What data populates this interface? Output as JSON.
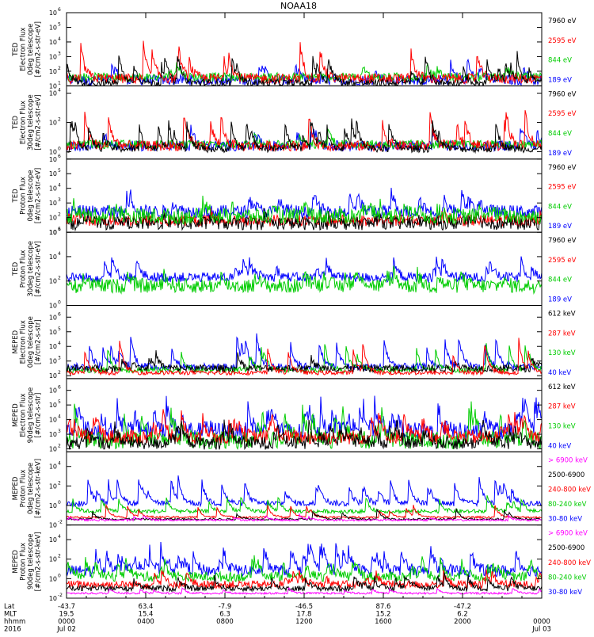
{
  "title": "NOAA18",
  "chart_data": [
    {
      "type": "line",
      "ylabel": [
        "TED",
        "Electron Flux",
        "0deg telescope",
        "[#/cm2-s-str-eV]"
      ],
      "ytick_exponents": [
        1,
        2,
        3,
        4,
        5,
        6
      ],
      "ylim_log10": [
        1,
        6
      ],
      "legend": [
        {
          "label": "7960 eV",
          "color": "#000000"
        },
        {
          "label": "2595 eV",
          "color": "#ff0000"
        },
        {
          "label": "844 eV",
          "color": "#00cc00"
        },
        {
          "label": "189 eV",
          "color": "#0000ff"
        }
      ],
      "series": [
        {
          "color": "#0000ff",
          "base": 1.4,
          "noise": 0.35,
          "peak_rate": 0.01,
          "peak_height": 1.6
        },
        {
          "color": "#00cc00",
          "base": 1.6,
          "noise": 0.3,
          "peak_rate": 0.008,
          "peak_height": 1.4
        },
        {
          "color": "#ff0000",
          "base": 1.5,
          "noise": 0.35,
          "peak_rate": 0.028,
          "peak_height": 2.6
        },
        {
          "color": "#000000",
          "base": 1.2,
          "noise": 0.25,
          "peak_rate": 0.03,
          "peak_height": 2.2
        }
      ]
    },
    {
      "type": "line",
      "ylabel": [
        "TED",
        "Electron Flux",
        "30deg telescope",
        "[#/cm2-s-str-eV]"
      ],
      "ytick_exponents": [
        0,
        2,
        4
      ],
      "ylim_log10": [
        -0.5,
        4.5
      ],
      "legend": [
        {
          "label": "7960 eV",
          "color": "#000000"
        },
        {
          "label": "2595 eV",
          "color": "#ff0000"
        },
        {
          "label": "844 eV",
          "color": "#00cc00"
        },
        {
          "label": "189 eV",
          "color": "#0000ff"
        }
      ],
      "series": [
        {
          "color": "#0000ff",
          "base": 0.4,
          "noise": 0.35,
          "peak_rate": 0.01,
          "peak_height": 1.6
        },
        {
          "color": "#00cc00",
          "base": 0.5,
          "noise": 0.3,
          "peak_rate": 0.008,
          "peak_height": 1.4
        },
        {
          "color": "#ff0000",
          "base": 0.4,
          "noise": 0.35,
          "peak_rate": 0.028,
          "peak_height": 2.8
        },
        {
          "color": "#000000",
          "base": 0.2,
          "noise": 0.25,
          "peak_rate": 0.03,
          "peak_height": 2.2
        }
      ]
    },
    {
      "type": "line",
      "ylabel": [
        "TED",
        "Proton Flux",
        "0deg telescope",
        "[#/cm2-s-str-eV]"
      ],
      "ytick_exponents": [
        1,
        2,
        3,
        4,
        5,
        6
      ],
      "ylim_log10": [
        1,
        6
      ],
      "legend": [
        {
          "label": "7960 eV",
          "color": "#000000"
        },
        {
          "label": "2595 eV",
          "color": "#ff0000"
        },
        {
          "label": "844 eV",
          "color": "#00cc00"
        },
        {
          "label": "189 eV",
          "color": "#0000ff"
        }
      ],
      "series": [
        {
          "color": "#0000ff",
          "base": 2.4,
          "noise": 0.45,
          "peak_rate": 0.04,
          "peak_height": 1.6
        },
        {
          "color": "#ff0000",
          "base": 1.8,
          "noise": 0.4,
          "peak_rate": 0.01,
          "peak_height": 0.8
        },
        {
          "color": "#000000",
          "base": 1.6,
          "noise": 0.45,
          "peak_rate": 0.02,
          "peak_height": 0.8
        },
        {
          "color": "#00cc00",
          "base": 2.1,
          "noise": 0.55,
          "peak_rate": 0.03,
          "peak_height": 1.0
        }
      ]
    },
    {
      "type": "line",
      "ylabel": [
        "TED",
        "Proton Flux",
        "30deg telescope",
        "[#/cm2-s-str-eV]"
      ],
      "ytick_exponents": [
        0,
        2,
        4,
        6
      ],
      "ylim_log10": [
        0,
        6
      ],
      "legend": [
        {
          "label": "7960 eV",
          "color": "#000000"
        },
        {
          "label": "2595 eV",
          "color": "#ff0000"
        },
        {
          "label": "844 eV",
          "color": "#00cc00"
        },
        {
          "label": "189 eV",
          "color": "#0000ff"
        }
      ],
      "series": [
        {
          "color": "#0000ff",
          "base": 2.3,
          "noise": 0.4,
          "peak_rate": 0.04,
          "peak_height": 1.8
        },
        {
          "color": "#00cc00",
          "base": 1.6,
          "noise": 0.6,
          "peak_rate": 0.03,
          "peak_height": 1.4
        }
      ]
    },
    {
      "type": "line",
      "ylabel": [
        "MEPED",
        "Electron Flux",
        "0deg telescope",
        "[#/cm2-s-str]"
      ],
      "ytick_exponents": [
        2,
        3,
        4,
        5,
        6
      ],
      "ylim_log10": [
        1.8,
        6.8
      ],
      "legend": [
        {
          "label": "612 keV",
          "color": "#000000"
        },
        {
          "label": "287 keV",
          "color": "#ff0000"
        },
        {
          "label": "130 keV",
          "color": "#00cc00"
        },
        {
          "label": "40 keV",
          "color": "#0000ff"
        }
      ],
      "series": [
        {
          "color": "#0000ff",
          "base": 2.6,
          "noise": 0.25,
          "peak_rate": 0.03,
          "peak_height": 2.6
        },
        {
          "color": "#00cc00",
          "base": 2.4,
          "noise": 0.2,
          "peak_rate": 0.02,
          "peak_height": 2.0
        },
        {
          "color": "#000000",
          "base": 2.5,
          "noise": 0.25,
          "peak_rate": 0.02,
          "peak_height": 1.2
        },
        {
          "color": "#ff0000",
          "base": 2.2,
          "noise": 0.15,
          "peak_rate": 0.012,
          "peak_height": 2.6
        }
      ]
    },
    {
      "type": "line",
      "ylabel": [
        "MEPED",
        "Electron Flux",
        "90deg telescope",
        "[#/cm2-s-str]"
      ],
      "ytick_exponents": [
        2,
        3,
        4,
        5,
        6
      ],
      "ylim_log10": [
        1.8,
        6.8
      ],
      "legend": [
        {
          "label": "612 keV",
          "color": "#000000"
        },
        {
          "label": "287 keV",
          "color": "#ff0000"
        },
        {
          "label": "130 keV",
          "color": "#00cc00"
        },
        {
          "label": "40 keV",
          "color": "#0000ff"
        }
      ],
      "series": [
        {
          "color": "#0000ff",
          "base": 3.2,
          "noise": 0.6,
          "peak_rate": 0.05,
          "peak_height": 2.2
        },
        {
          "color": "#00cc00",
          "base": 2.6,
          "noise": 0.6,
          "peak_rate": 0.05,
          "peak_height": 2.4
        },
        {
          "color": "#ff0000",
          "base": 2.8,
          "noise": 0.5,
          "peak_rate": 0.05,
          "peak_height": 1.8
        },
        {
          "color": "#000000",
          "base": 2.4,
          "noise": 0.45,
          "peak_rate": 0.05,
          "peak_height": 1.6
        }
      ]
    },
    {
      "type": "line",
      "ylabel": [
        "MEPED",
        "Proton Flux",
        "0deg telescope",
        "[#/cm2-s-str-keV]"
      ],
      "ytick_exponents": [
        -2,
        0,
        2,
        4
      ],
      "ylim_log10": [
        -2,
        5.5
      ],
      "legend": [
        {
          "label": "> 6900 keV",
          "color": "#ff00ff"
        },
        {
          "label": "2500-6900",
          "color": "#000000"
        },
        {
          "label": "240-800 keV",
          "color": "#ff0000"
        },
        {
          "label": "80-240 keV",
          "color": "#00cc00"
        },
        {
          "label": "30-80 keV",
          "color": "#0000ff"
        }
      ],
      "series": [
        {
          "color": "#0000ff",
          "base": 0.2,
          "noise": 0.3,
          "peak_rate": 0.04,
          "peak_height": 3.0
        },
        {
          "color": "#00cc00",
          "base": -0.6,
          "noise": 0.2,
          "peak_rate": 0.03,
          "peak_height": 2.0
        },
        {
          "color": "#ff0000",
          "base": -1.2,
          "noise": 0.1,
          "peak_rate": 0.02,
          "peak_height": 1.4
        },
        {
          "color": "#000000",
          "base": -1.4,
          "noise": 0.1,
          "peak_rate": 0.02,
          "peak_height": 1.2
        },
        {
          "color": "#ff00ff",
          "base": -1.5,
          "noise": 0.1,
          "peak_rate": 0.015,
          "peak_height": 0.6
        }
      ]
    },
    {
      "type": "line",
      "ylabel": [
        "MEPED",
        "Proton Flux",
        "90deg telescope",
        "[#/cm2-s-str-keV]"
      ],
      "ytick_exponents": [
        -2,
        0,
        2,
        4
      ],
      "ylim_log10": [
        -2,
        5.5
      ],
      "legend": [
        {
          "label": "> 6900 keV",
          "color": "#ff00ff"
        },
        {
          "label": "2500-6900",
          "color": "#000000"
        },
        {
          "label": "240-800 keV",
          "color": "#ff0000"
        },
        {
          "label": "80-240 keV",
          "color": "#00cc00"
        },
        {
          "label": "30-80 keV",
          "color": "#0000ff"
        }
      ],
      "series": [
        {
          "color": "#0000ff",
          "base": 0.8,
          "noise": 0.6,
          "peak_rate": 0.06,
          "peak_height": 2.8
        },
        {
          "color": "#00cc00",
          "base": 0.2,
          "noise": 0.5,
          "peak_rate": 0.05,
          "peak_height": 2.0
        },
        {
          "color": "#ff0000",
          "base": -0.6,
          "noise": 0.4,
          "peak_rate": 0.04,
          "peak_height": 1.6
        },
        {
          "color": "#000000",
          "base": -1.0,
          "noise": 0.3,
          "peak_rate": 0.03,
          "peak_height": 1.6
        },
        {
          "color": "#ff00ff",
          "base": -1.5,
          "noise": 0.1,
          "peak_rate": 0.02,
          "peak_height": 0.7
        }
      ]
    }
  ],
  "x_axis": {
    "row_labels": [
      "Lat",
      "MLT",
      "hhmm",
      "2016"
    ],
    "ticks": [
      {
        "lat": "-43.7",
        "mlt": "19.5",
        "hhmm": "0000",
        "date": "Jul 02",
        "hour": 0
      },
      {
        "lat": "63.4",
        "mlt": "15.4",
        "hhmm": "0400",
        "date": "",
        "hour": 4
      },
      {
        "lat": "-7.9",
        "mlt": "6.3",
        "hhmm": "0800",
        "date": "",
        "hour": 8
      },
      {
        "lat": "-46.5",
        "mlt": "17.8",
        "hhmm": "1200",
        "date": "",
        "hour": 12
      },
      {
        "lat": "87.6",
        "mlt": "15.2",
        "hhmm": "1600",
        "date": "",
        "hour": 16
      },
      {
        "lat": "-47.2",
        "mlt": "6.2",
        "hhmm": "2000",
        "date": "",
        "hour": 20
      },
      {
        "lat": "",
        "mlt": "",
        "hhmm": "0000",
        "date": "Jul 03",
        "hour": 24
      }
    ]
  }
}
